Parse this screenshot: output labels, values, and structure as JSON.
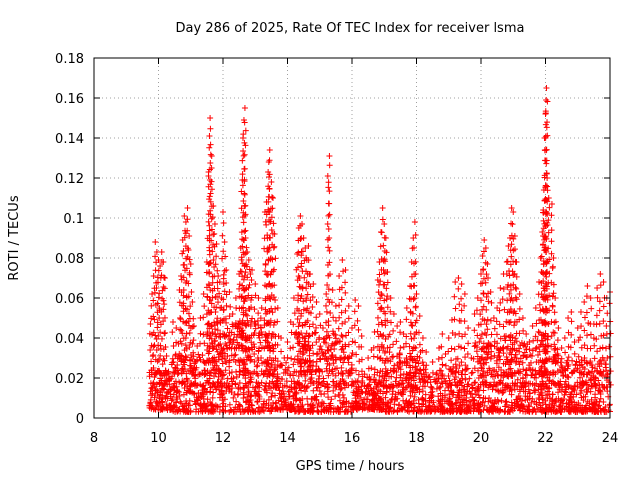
{
  "chart_data": {
    "type": "scatter",
    "title": "Day 286 of 2025, Rate Of TEC Index for receiver lsma",
    "xlabel": "GPS time / hours",
    "ylabel": "ROTI / TECUs",
    "xlim": [
      8,
      24
    ],
    "ylim": [
      0,
      0.18
    ],
    "xticks": [
      "8",
      "10",
      "12",
      "14",
      "16",
      "18",
      "20",
      "22",
      "24"
    ],
    "yticks": [
      "0",
      "0.02",
      "0.04",
      "0.06",
      "0.08",
      "0.1",
      "0.12",
      "0.14",
      "0.16",
      "0.18"
    ],
    "grid": true,
    "marker": "+",
    "color": "#ff0000",
    "series": [
      {
        "name": "ROTI",
        "points": [
          [
            9.75,
            0.047
          ],
          [
            9.8,
            0.062
          ],
          [
            9.85,
            0.071
          ],
          [
            9.9,
            0.088
          ],
          [
            9.95,
            0.083
          ],
          [
            10.0,
            0.079
          ],
          [
            10.05,
            0.076
          ],
          [
            10.1,
            0.083
          ],
          [
            10.15,
            0.078
          ],
          [
            10.2,
            0.07
          ],
          [
            10.25,
            0.031
          ],
          [
            10.3,
            0.022
          ],
          [
            10.45,
            0.048
          ],
          [
            10.55,
            0.045
          ],
          [
            10.65,
            0.064
          ],
          [
            10.7,
            0.071
          ],
          [
            10.75,
            0.089
          ],
          [
            10.8,
            0.101
          ],
          [
            10.85,
            0.098
          ],
          [
            10.9,
            0.105
          ],
          [
            10.95,
            0.091
          ],
          [
            11.0,
            0.077
          ],
          [
            11.05,
            0.058
          ],
          [
            11.1,
            0.046
          ],
          [
            11.2,
            0.036
          ],
          [
            11.3,
            0.05
          ],
          [
            11.4,
            0.062
          ],
          [
            11.5,
            0.078
          ],
          [
            11.55,
            0.121
          ],
          [
            11.58,
            0.141
          ],
          [
            11.6,
            0.15
          ],
          [
            11.65,
            0.131
          ],
          [
            11.7,
            0.106
          ],
          [
            11.75,
            0.097
          ],
          [
            11.8,
            0.087
          ],
          [
            11.85,
            0.071
          ],
          [
            11.9,
            0.068
          ],
          [
            11.95,
            0.06
          ],
          [
            12.0,
            0.103
          ],
          [
            12.05,
            0.088
          ],
          [
            12.1,
            0.074
          ],
          [
            12.2,
            0.063
          ],
          [
            12.3,
            0.052
          ],
          [
            12.4,
            0.06
          ],
          [
            12.5,
            0.072
          ],
          [
            12.55,
            0.085
          ],
          [
            12.6,
            0.119
          ],
          [
            12.62,
            0.14
          ],
          [
            12.65,
            0.149
          ],
          [
            12.68,
            0.155
          ],
          [
            12.7,
            0.09
          ],
          [
            12.75,
            0.083
          ],
          [
            12.8,
            0.079
          ],
          [
            12.85,
            0.072
          ],
          [
            12.9,
            0.074
          ],
          [
            13.0,
            0.067
          ],
          [
            13.1,
            0.06
          ],
          [
            13.2,
            0.055
          ],
          [
            13.3,
            0.103
          ],
          [
            13.35,
            0.108
          ],
          [
            13.4,
            0.123
          ],
          [
            13.42,
            0.128
          ],
          [
            13.45,
            0.134
          ],
          [
            13.5,
            0.118
          ],
          [
            13.55,
            0.11
          ],
          [
            13.6,
            0.092
          ],
          [
            13.7,
            0.055
          ],
          [
            13.8,
            0.04
          ],
          [
            13.9,
            0.03
          ],
          [
            14.0,
            0.038
          ],
          [
            14.1,
            0.048
          ],
          [
            14.2,
            0.06
          ],
          [
            14.3,
            0.082
          ],
          [
            14.35,
            0.095
          ],
          [
            14.4,
            0.101
          ],
          [
            14.45,
            0.097
          ],
          [
            14.5,
            0.09
          ],
          [
            14.55,
            0.085
          ],
          [
            14.6,
            0.079
          ],
          [
            14.65,
            0.086
          ],
          [
            14.7,
            0.072
          ],
          [
            14.8,
            0.067
          ],
          [
            14.9,
            0.058
          ],
          [
            15.0,
            0.052
          ],
          [
            15.1,
            0.045
          ],
          [
            15.2,
            0.062
          ],
          [
            15.25,
            0.121
          ],
          [
            15.3,
            0.131
          ],
          [
            15.4,
            0.064
          ],
          [
            15.5,
            0.056
          ],
          [
            15.6,
            0.071
          ],
          [
            15.7,
            0.079
          ],
          [
            15.8,
            0.074
          ],
          [
            15.9,
            0.056
          ],
          [
            16.0,
            0.045
          ],
          [
            16.1,
            0.059
          ],
          [
            16.2,
            0.056
          ],
          [
            16.3,
            0.041
          ],
          [
            16.5,
            0.03
          ],
          [
            16.6,
            0.034
          ],
          [
            16.7,
            0.043
          ],
          [
            16.8,
            0.069
          ],
          [
            16.85,
            0.078
          ],
          [
            16.9,
            0.093
          ],
          [
            16.95,
            0.105
          ],
          [
            17.0,
            0.097
          ],
          [
            17.05,
            0.09
          ],
          [
            17.1,
            0.073
          ],
          [
            17.2,
            0.06
          ],
          [
            17.3,
            0.052
          ],
          [
            17.4,
            0.046
          ],
          [
            17.5,
            0.048
          ],
          [
            17.6,
            0.042
          ],
          [
            17.7,
            0.055
          ],
          [
            17.8,
            0.066
          ],
          [
            17.85,
            0.078
          ],
          [
            17.9,
            0.09
          ],
          [
            17.95,
            0.098
          ],
          [
            18.0,
            0.062
          ],
          [
            18.1,
            0.051
          ],
          [
            18.2,
            0.04
          ],
          [
            18.3,
            0.033
          ],
          [
            18.5,
            0.028
          ],
          [
            18.7,
            0.035
          ],
          [
            18.8,
            0.042
          ],
          [
            18.9,
            0.032
          ],
          [
            19.0,
            0.04
          ],
          [
            19.1,
            0.049
          ],
          [
            19.2,
            0.068
          ],
          [
            19.3,
            0.07
          ],
          [
            19.4,
            0.067
          ],
          [
            19.5,
            0.062
          ],
          [
            19.6,
            0.045
          ],
          [
            19.7,
            0.03
          ],
          [
            19.8,
            0.052
          ],
          [
            19.9,
            0.06
          ],
          [
            20.0,
            0.072
          ],
          [
            20.05,
            0.081
          ],
          [
            20.1,
            0.089
          ],
          [
            20.15,
            0.085
          ],
          [
            20.2,
            0.077
          ],
          [
            20.3,
            0.063
          ],
          [
            20.4,
            0.05
          ],
          [
            20.5,
            0.055
          ],
          [
            20.6,
            0.065
          ],
          [
            20.7,
            0.072
          ],
          [
            20.8,
            0.078
          ],
          [
            20.85,
            0.086
          ],
          [
            20.9,
            0.09
          ],
          [
            20.95,
            0.105
          ],
          [
            21.0,
            0.103
          ],
          [
            21.05,
            0.091
          ],
          [
            21.1,
            0.078
          ],
          [
            21.2,
            0.062
          ],
          [
            21.3,
            0.05
          ],
          [
            21.4,
            0.042
          ],
          [
            21.5,
            0.038
          ],
          [
            21.6,
            0.046
          ],
          [
            21.7,
            0.055
          ],
          [
            21.8,
            0.068
          ],
          [
            21.85,
            0.08
          ],
          [
            21.9,
            0.093
          ],
          [
            21.93,
            0.104
          ],
          [
            21.95,
            0.114
          ],
          [
            21.97,
            0.14
          ],
          [
            22.0,
            0.152
          ],
          [
            22.02,
            0.159
          ],
          [
            22.03,
            0.165
          ],
          [
            22.05,
            0.12
          ],
          [
            22.1,
            0.11
          ],
          [
            22.2,
            0.107
          ],
          [
            22.25,
            0.08
          ],
          [
            22.3,
            0.06
          ],
          [
            22.4,
            0.045
          ],
          [
            22.5,
            0.035
          ],
          [
            22.6,
            0.04
          ],
          [
            22.7,
            0.05
          ],
          [
            22.8,
            0.053
          ],
          [
            22.9,
            0.038
          ],
          [
            23.0,
            0.045
          ],
          [
            23.1,
            0.053
          ],
          [
            23.2,
            0.058
          ],
          [
            23.3,
            0.066
          ],
          [
            23.4,
            0.06
          ],
          [
            23.5,
            0.047
          ],
          [
            23.6,
            0.065
          ],
          [
            23.7,
            0.072
          ],
          [
            23.8,
            0.068
          ],
          [
            23.9,
            0.06
          ],
          [
            24.0,
            0.063
          ]
        ],
        "noise_bands": [
          {
            "start": 9.7,
            "end": 10.4,
            "base": 0.004,
            "spread": 0.02
          },
          {
            "start": 10.4,
            "end": 11.5,
            "base": 0.003,
            "spread": 0.03
          },
          {
            "start": 11.5,
            "end": 13.6,
            "base": 0.003,
            "spread": 0.046
          },
          {
            "start": 13.6,
            "end": 14.2,
            "base": 0.004,
            "spread": 0.024
          },
          {
            "start": 14.2,
            "end": 16.0,
            "base": 0.003,
            "spread": 0.04
          },
          {
            "start": 16.0,
            "end": 17.0,
            "base": 0.004,
            "spread": 0.018
          },
          {
            "start": 17.0,
            "end": 18.2,
            "base": 0.003,
            "spread": 0.03
          },
          {
            "start": 18.2,
            "end": 19.8,
            "base": 0.003,
            "spread": 0.024
          },
          {
            "start": 19.8,
            "end": 22.4,
            "base": 0.003,
            "spread": 0.036
          },
          {
            "start": 22.4,
            "end": 24.0,
            "base": 0.003,
            "spread": 0.026
          }
        ]
      }
    ]
  }
}
